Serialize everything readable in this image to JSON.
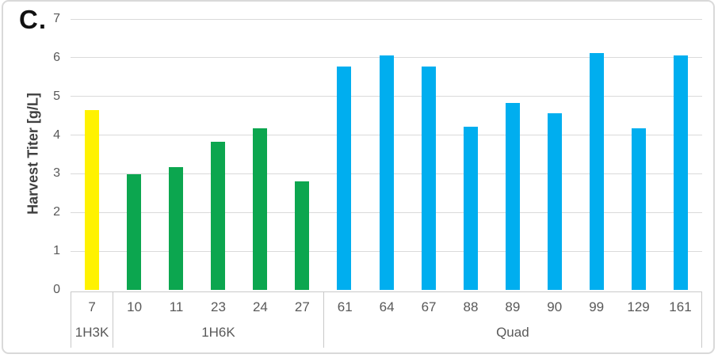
{
  "panel_label": "C.",
  "chart_data": {
    "type": "bar",
    "title": "",
    "xlabel": "",
    "ylabel": "Harvest Titer [g/L]",
    "ylim": [
      0,
      7
    ],
    "yticks": [
      0,
      1,
      2,
      3,
      4,
      5,
      6,
      7
    ],
    "grid": true,
    "legend_position": "none",
    "categories": [
      "7",
      "10",
      "11",
      "23",
      "24",
      "27",
      "61",
      "64",
      "67",
      "88",
      "89",
      "90",
      "99",
      "129",
      "161"
    ],
    "groups": [
      {
        "name": "1H3K",
        "color": "#fff200",
        "bars": [
          {
            "label": "7",
            "value": 4.64
          }
        ]
      },
      {
        "name": "1H6K",
        "color": "#0ca64f",
        "bars": [
          {
            "label": "10",
            "value": 2.98
          },
          {
            "label": "11",
            "value": 3.17
          },
          {
            "label": "23",
            "value": 3.82
          },
          {
            "label": "24",
            "value": 4.18
          },
          {
            "label": "27",
            "value": 2.8
          }
        ]
      },
      {
        "name": "Quad",
        "color": "#00aeef",
        "bars": [
          {
            "label": "61",
            "value": 5.77
          },
          {
            "label": "64",
            "value": 6.05
          },
          {
            "label": "67",
            "value": 5.77
          },
          {
            "label": "88",
            "value": 4.21
          },
          {
            "label": "89",
            "value": 4.84
          },
          {
            "label": "90",
            "value": 4.57
          },
          {
            "label": "99",
            "value": 6.13
          },
          {
            "label": "129",
            "value": 4.18
          },
          {
            "label": "161",
            "value": 6.05
          }
        ]
      }
    ]
  },
  "colors": {
    "gridline": "#dadada",
    "axis_line": "#c9c9c9",
    "tick_text": "#595959",
    "axis_title_text": "#404040",
    "frame_border": "#d9d9d9",
    "panel_label_text": "#111111"
  }
}
